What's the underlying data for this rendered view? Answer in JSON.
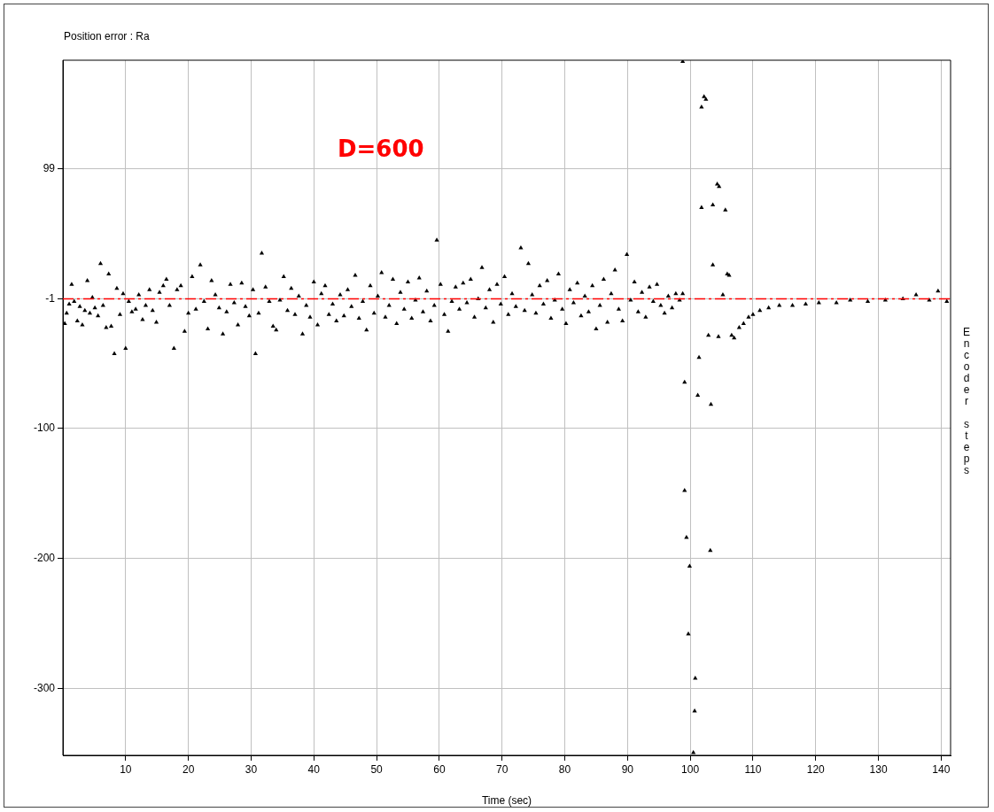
{
  "chart_data": {
    "type": "scatter",
    "title": "Position error : Ra",
    "xlabel": "Time (sec)",
    "ylabel": "Encoder steps",
    "color": "#000000",
    "marker": "triangle",
    "grid": true,
    "xlim": [
      0,
      141.5
    ],
    "ylim": [
      -351,
      182
    ],
    "xticks": [
      10,
      20,
      30,
      40,
      50,
      60,
      70,
      80,
      90,
      100,
      110,
      120,
      130,
      140
    ],
    "yticks": [
      99,
      -1,
      -100,
      -200,
      -300
    ],
    "ref_lines": [
      {
        "axis": "y",
        "value": -1,
        "color": "#ff0000",
        "line_style": "dashed"
      }
    ],
    "annotations": [
      "D=600"
    ],
    "x": [
      0.3,
      0.6,
      1,
      1.4,
      1.8,
      2.3,
      2.7,
      3.1,
      3.5,
      3.9,
      4.3,
      4.7,
      5.1,
      5.6,
      6,
      6.4,
      6.9,
      7.3,
      7.7,
      8.2,
      8.6,
      9.1,
      9.6,
      10,
      10.5,
      11,
      11.6,
      12.1,
      12.7,
      13.2,
      13.8,
      14.3,
      14.9,
      15.4,
      16,
      16.5,
      17,
      17.7,
      18.2,
      18.8,
      19.4,
      20,
      20.6,
      21.2,
      21.9,
      22.5,
      23.1,
      23.7,
      24.3,
      24.9,
      25.5,
      26.1,
      26.7,
      27.3,
      27.9,
      28.5,
      29.1,
      29.7,
      30.3,
      30.7,
      31.2,
      31.7,
      32.3,
      32.9,
      33.5,
      34,
      34.6,
      35.2,
      35.8,
      36.4,
      37,
      37.6,
      38.2,
      38.8,
      39.4,
      40,
      40.6,
      41.2,
      41.8,
      42.4,
      43,
      43.6,
      44.2,
      44.8,
      45.4,
      46,
      46.6,
      47.2,
      47.8,
      48.4,
      49,
      49.6,
      50.2,
      50.8,
      51.4,
      52,
      52.6,
      53.2,
      53.8,
      54.4,
      55,
      55.6,
      56.2,
      56.8,
      57.4,
      58,
      58.6,
      59.2,
      59.6,
      60.2,
      60.8,
      61.4,
      62,
      62.6,
      63.2,
      63.8,
      64.4,
      65,
      65.6,
      66.2,
      66.8,
      67.4,
      68,
      68.6,
      69.2,
      69.8,
      70.4,
      71,
      71.6,
      72.2,
      73,
      73.6,
      74.2,
      74.8,
      75.4,
      76,
      76.6,
      77.2,
      77.8,
      78.4,
      79,
      79.6,
      80.2,
      80.8,
      81.4,
      82,
      82.6,
      83.2,
      83.8,
      84.4,
      85,
      85.6,
      86.2,
      86.8,
      87.4,
      88,
      88.6,
      89.2,
      89.9,
      90.5,
      91.1,
      91.7,
      92.3,
      92.9,
      93.5,
      94.1,
      94.7,
      95.3,
      95.9,
      96.5,
      97.1,
      97.7,
      98.3,
      98.8,
      98.8,
      99.1,
      99.1,
      99.4,
      99.9,
      99.7,
      100.5,
      100.8,
      100.7,
      101.2,
      101.4,
      101.8,
      101.8,
      102.2,
      102.5,
      102.9,
      103.3,
      103.2,
      103.6,
      103.6,
      104.3,
      104.6,
      104.5,
      105.2,
      105.6,
      105.9,
      106.2,
      106.6,
      107,
      107.8,
      108.5,
      109.3,
      110,
      111.1,
      112.5,
      114.2,
      116.3,
      118.4,
      120.5,
      123.3,
      125.5,
      128.3,
      131.1,
      133.9,
      136,
      138.1,
      139.5,
      140.9
    ],
    "values": [
      -20,
      -12,
      -5,
      10,
      -3,
      -18,
      -7,
      -21,
      -10,
      13,
      -12,
      0,
      -8,
      -14,
      26,
      -6,
      -23,
      18,
      -22,
      -43,
      7,
      -13,
      3,
      -39,
      -3,
      -11,
      -9,
      2,
      -17,
      -6,
      6,
      -10,
      -19,
      4,
      9,
      14,
      -6,
      -39,
      6,
      9,
      -26,
      -12,
      16,
      -9,
      25,
      -3,
      -24,
      13,
      2,
      -8,
      -28,
      -11,
      10,
      -4,
      -21,
      11,
      -7,
      -14,
      6,
      -43,
      -12,
      34,
      8,
      -3,
      -22,
      -25,
      -2,
      16,
      -10,
      7,
      -13,
      1,
      -28,
      -6,
      -15,
      12,
      -21,
      3,
      9,
      -13,
      -5,
      -18,
      2,
      -14,
      6,
      -7,
      17,
      -16,
      -3,
      -25,
      9,
      -12,
      1,
      19,
      -15,
      -6,
      14,
      -20,
      4,
      -9,
      12,
      -16,
      -2,
      15,
      -11,
      5,
      -18,
      -6,
      44,
      10,
      -13,
      -26,
      -3,
      8,
      -9,
      11,
      -4,
      14,
      -15,
      -1,
      23,
      -8,
      6,
      -19,
      10,
      -5,
      16,
      -13,
      3,
      -7,
      38,
      -10,
      26,
      2,
      -12,
      9,
      -5,
      13,
      -16,
      -2,
      18,
      -9,
      -20,
      6,
      -4,
      11,
      -14,
      1,
      -11,
      9,
      -24,
      -6,
      14,
      -19,
      3,
      21,
      -9,
      -18,
      33,
      -2,
      12,
      -11,
      4,
      -15,
      8,
      -3,
      10,
      -6,
      -12,
      1,
      -8,
      3,
      -2,
      3,
      181,
      -65,
      -148,
      -184,
      -206,
      -258,
      -349,
      -292,
      -317,
      -75,
      -46,
      69,
      146,
      154,
      152,
      -29,
      -82,
      -194,
      71,
      25,
      87,
      85,
      -30,
      2,
      67,
      18,
      17,
      -29,
      -31,
      -23,
      -20,
      -15,
      -13,
      -10,
      -8,
      -6,
      -6,
      -5,
      -4,
      -4,
      -2,
      -3,
      -2,
      -1,
      2,
      -2,
      5,
      -3
    ]
  }
}
